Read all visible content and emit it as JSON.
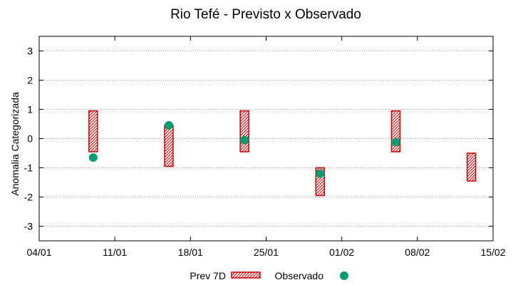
{
  "chart_data": {
    "type": "interval-scatter",
    "title": "Rio Tefé - Previsto x Observado",
    "xlabel": "",
    "ylabel": "Anomalia Categorizada",
    "x_ticks": [
      "04/01",
      "11/01",
      "18/01",
      "25/01",
      "01/02",
      "08/02",
      "15/02"
    ],
    "xlim_days": [
      0,
      42
    ],
    "ylim": [
      -3.5,
      3.5
    ],
    "y_ticks": [
      -3,
      -2,
      -1,
      0,
      1,
      2,
      3
    ],
    "grid": true,
    "series": [
      {
        "name": "Prev 7D",
        "kind": "range-box",
        "color": "#cc0000",
        "points": [
          {
            "day": 5,
            "low": -0.45,
            "high": 0.95
          },
          {
            "day": 12,
            "low": -0.95,
            "high": 0.45
          },
          {
            "day": 19,
            "low": -0.45,
            "high": 0.95
          },
          {
            "day": 26,
            "low": -1.95,
            "high": -1.0
          },
          {
            "day": 33,
            "low": -0.45,
            "high": 0.95
          },
          {
            "day": 40,
            "low": -1.45,
            "high": -0.5
          }
        ]
      },
      {
        "name": "Observado",
        "kind": "point",
        "color": "#009e73",
        "points": [
          {
            "day": 5,
            "value": -0.65
          },
          {
            "day": 12,
            "value": 0.45
          },
          {
            "day": 19,
            "value": -0.05
          },
          {
            "day": 26,
            "value": -1.2
          },
          {
            "day": 33,
            "value": -0.12
          }
        ]
      }
    ],
    "legend": {
      "placement": "bottom-center",
      "labels": [
        "Prev 7D",
        "Observado"
      ]
    }
  }
}
